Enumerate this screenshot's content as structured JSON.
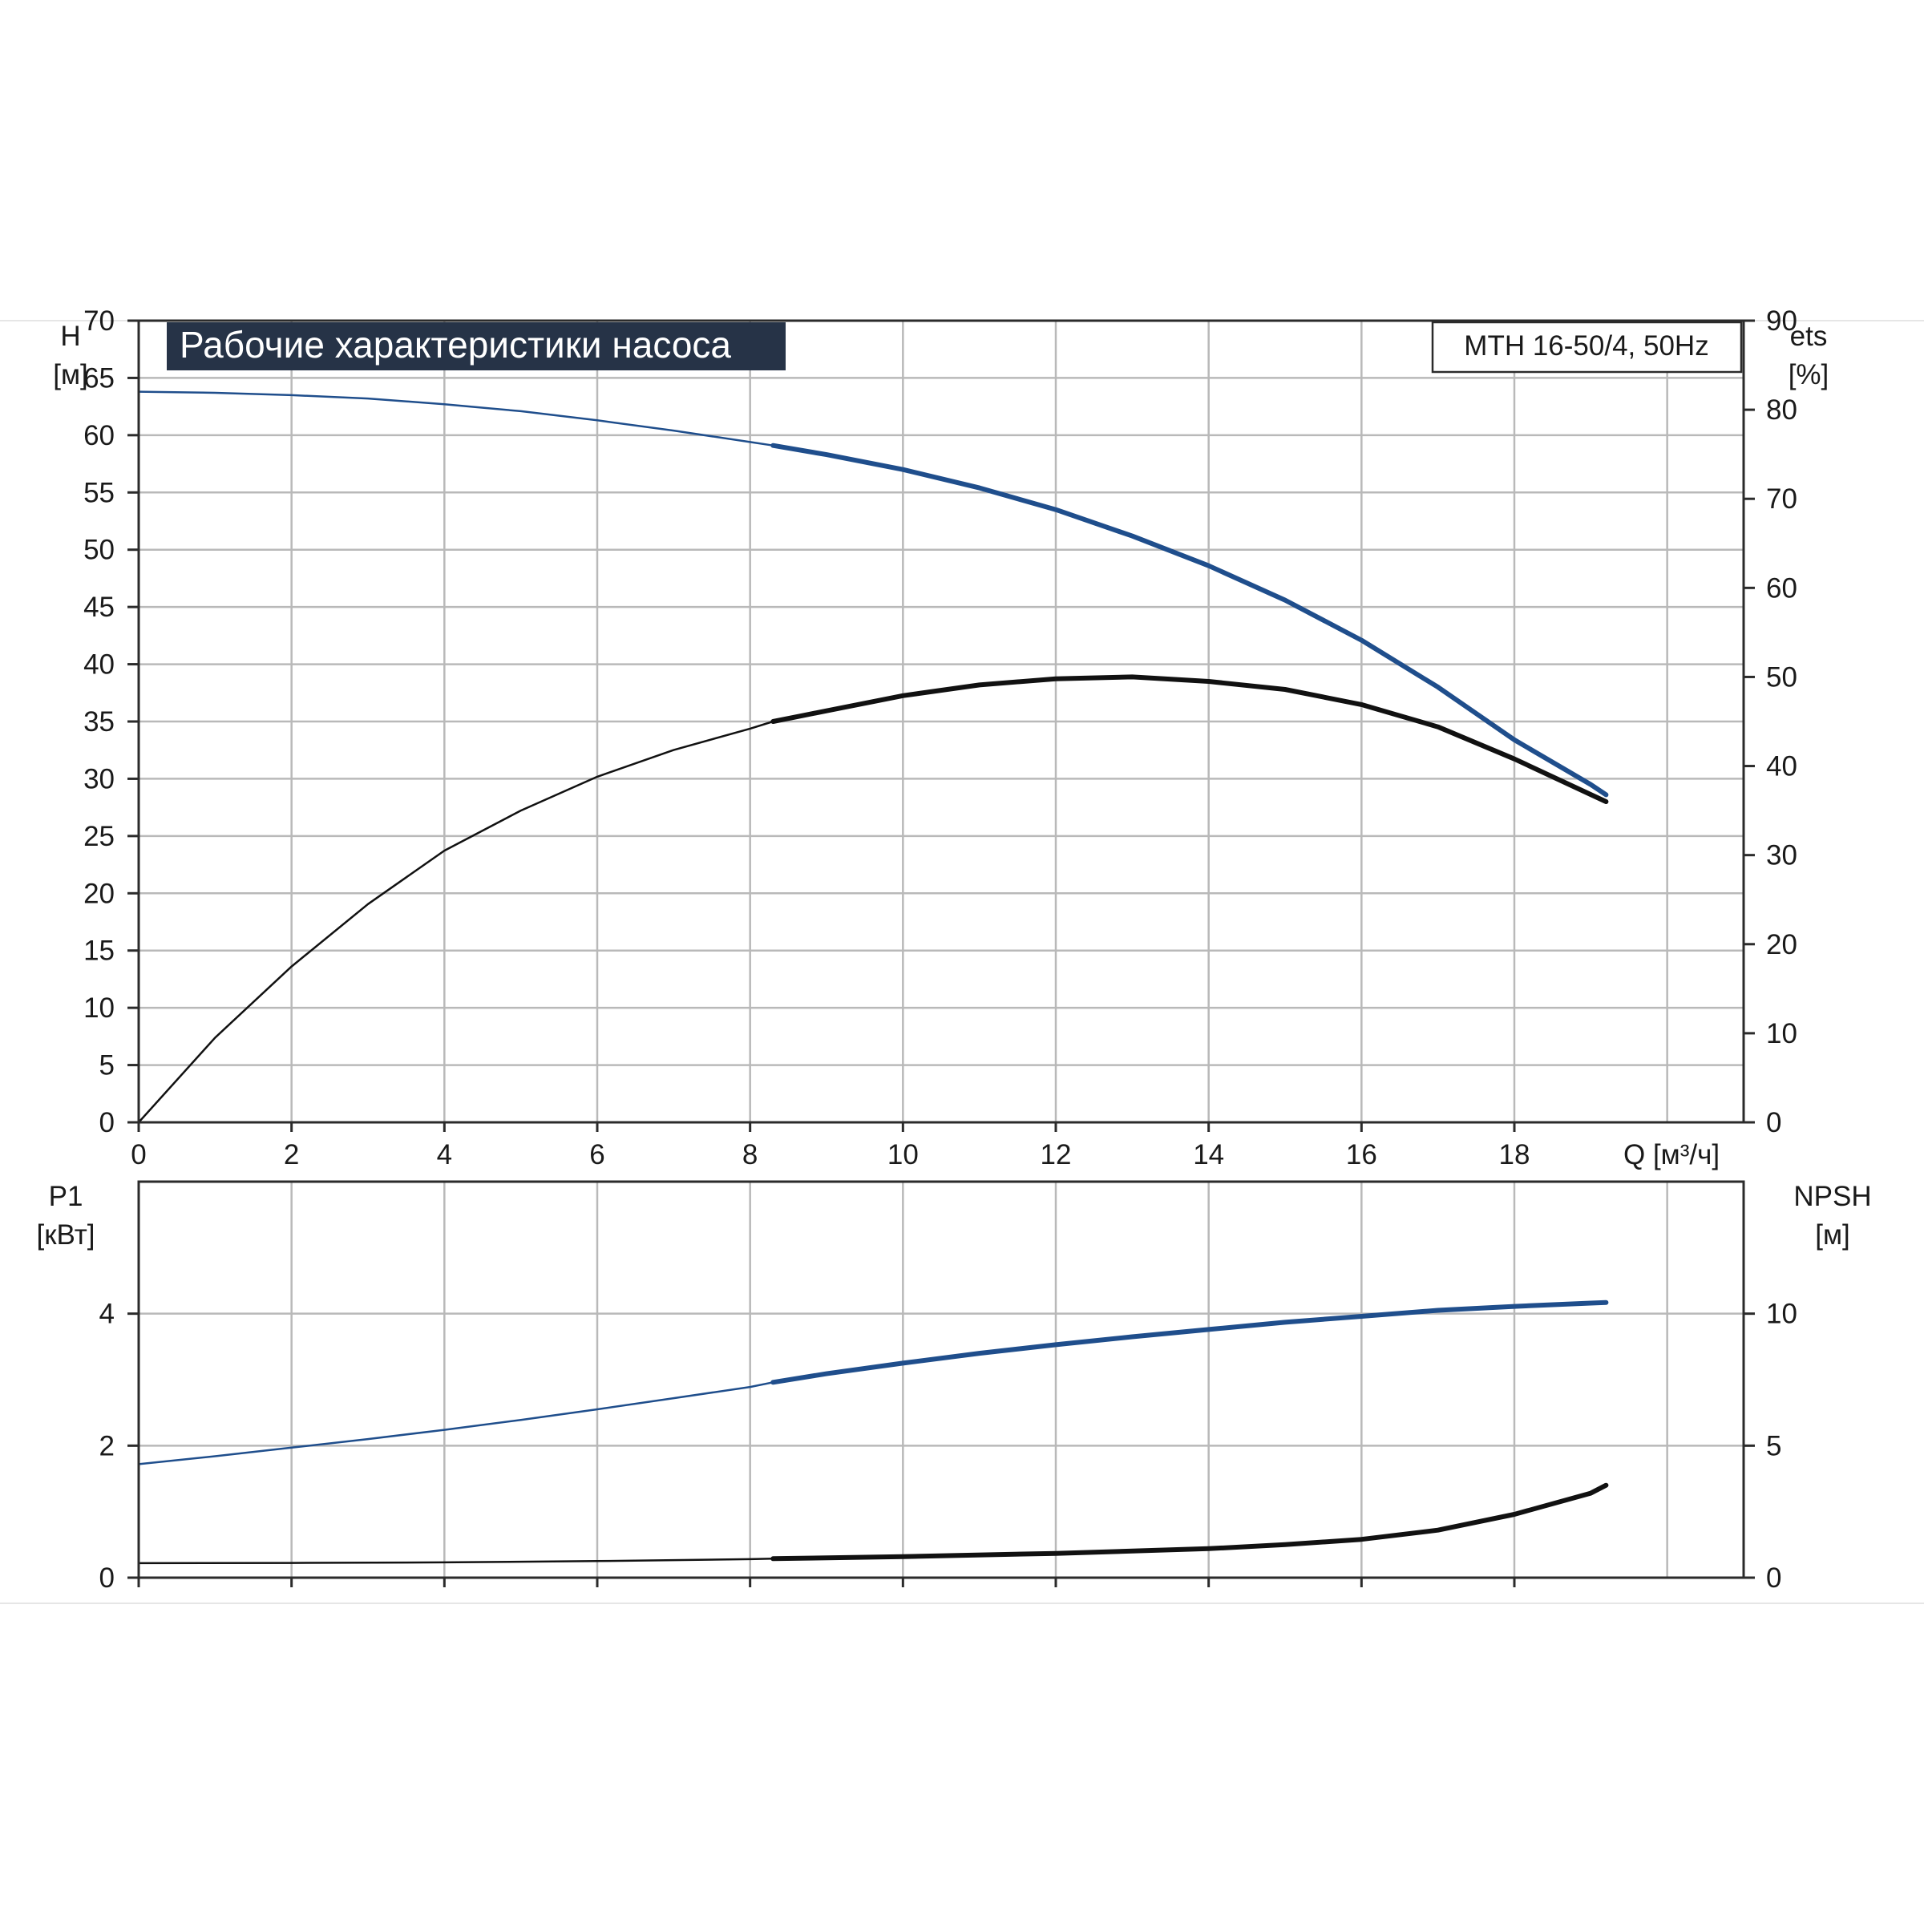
{
  "chart_data": [
    {
      "type": "line",
      "title": "Рабочие характеристики насоса",
      "model_label": "MTH 16-50/4, 50Hz",
      "left_axis": {
        "label": "H",
        "unit": "[м]",
        "range": [
          0,
          70
        ],
        "ticks": [
          0,
          5,
          10,
          15,
          20,
          25,
          30,
          35,
          40,
          45,
          50,
          55,
          60,
          65,
          70
        ]
      },
      "right_axis": {
        "label": "ets",
        "unit": "[%]",
        "range": [
          0,
          90
        ],
        "ticks": [
          0,
          10,
          20,
          30,
          40,
          50,
          60,
          70,
          80,
          90
        ]
      },
      "x_axis": {
        "label": "Q [м³/ч]",
        "range": [
          0,
          21
        ],
        "ticks": [
          0,
          2,
          4,
          6,
          8,
          10,
          12,
          14,
          16,
          18
        ]
      },
      "grid": true,
      "series": [
        {
          "axis": "left",
          "color": "#1f4e8c",
          "x": [
            0,
            1,
            2,
            3,
            4,
            5,
            6,
            7,
            8,
            8.3,
            9,
            10,
            11,
            12,
            13,
            14,
            15,
            16,
            17,
            18,
            19,
            19.2
          ],
          "values": [
            63.8,
            63.7,
            63.5,
            63.2,
            62.7,
            62.1,
            61.3,
            60.4,
            59.4,
            59.1,
            58.3,
            57.0,
            55.4,
            53.5,
            51.2,
            48.6,
            45.6,
            42.1,
            38.0,
            33.4,
            29.5,
            28.6
          ]
        },
        {
          "axis": "right",
          "color": "#111111",
          "x": [
            0,
            1,
            2,
            3,
            4,
            5,
            6,
            7,
            8,
            8.3,
            9,
            10,
            11,
            12,
            13,
            14,
            15,
            16,
            17,
            18,
            19,
            19.2
          ],
          "values": [
            0,
            9.5,
            17.5,
            24.5,
            30.5,
            35,
            38.8,
            41.8,
            44.2,
            45,
            46.2,
            47.9,
            49.1,
            49.8,
            50,
            49.5,
            48.6,
            46.9,
            44.4,
            40.8,
            36.8,
            36
          ]
        }
      ]
    },
    {
      "type": "line",
      "left_axis": {
        "label": "P1",
        "unit": "[кВт]",
        "range": [
          0,
          6
        ],
        "ticks": [
          0,
          2,
          4
        ]
      },
      "right_axis": {
        "label": "NPSH",
        "unit": "[м]",
        "range": [
          0,
          15
        ],
        "ticks": [
          0,
          5,
          10
        ]
      },
      "x_axis": {
        "range": [
          0,
          21
        ],
        "ticks": [
          0,
          2,
          4,
          6,
          8,
          10,
          12,
          14,
          16,
          18
        ]
      },
      "grid": true,
      "series": [
        {
          "axis": "left",
          "color": "#1f4e8c",
          "x": [
            0,
            1,
            2,
            3,
            4,
            5,
            6,
            7,
            8,
            8.3,
            9,
            10,
            11,
            12,
            13,
            14,
            15,
            16,
            17,
            18,
            19,
            19.2
          ],
          "values": [
            1.72,
            1.84,
            1.97,
            2.1,
            2.24,
            2.39,
            2.55,
            2.72,
            2.89,
            2.96,
            3.09,
            3.25,
            3.4,
            3.53,
            3.65,
            3.76,
            3.87,
            3.96,
            4.05,
            4.11,
            4.16,
            4.17
          ]
        },
        {
          "axis": "right",
          "color": "#111111",
          "x": [
            0,
            2,
            4,
            6,
            8,
            8.3,
            10,
            12,
            14,
            15,
            16,
            17,
            18,
            19,
            19.2
          ],
          "values": [
            0.55,
            0.56,
            0.58,
            0.63,
            0.7,
            0.72,
            0.8,
            0.92,
            1.1,
            1.25,
            1.45,
            1.8,
            2.4,
            3.2,
            3.5
          ]
        }
      ]
    }
  ]
}
